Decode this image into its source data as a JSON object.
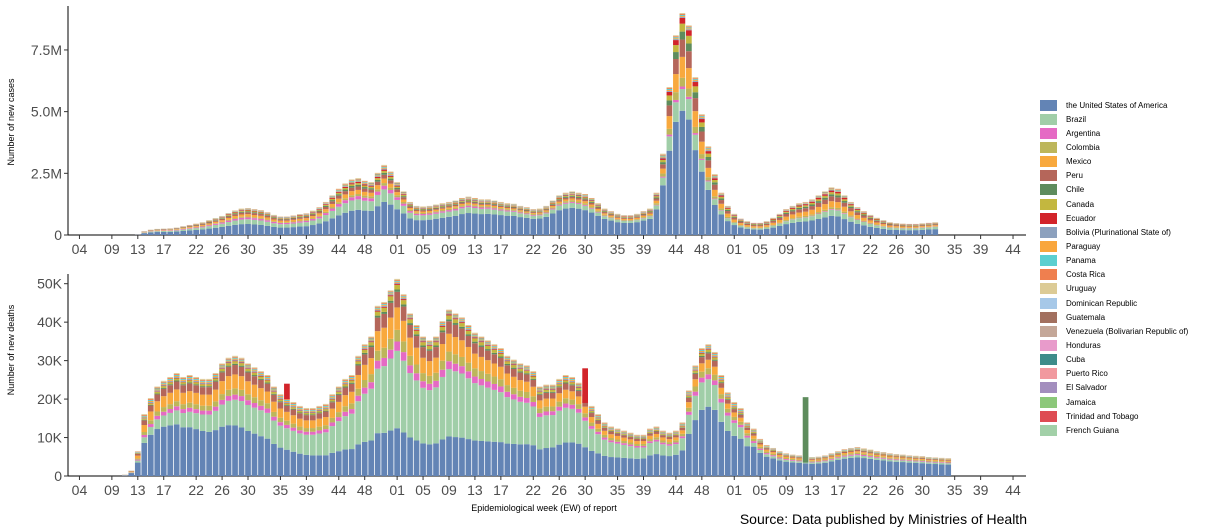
{
  "chart_data": [
    {
      "type": "bar",
      "stacked": true,
      "ylabel": "Number of new cases",
      "xlabel": "",
      "ylim": [
        0,
        9200000
      ],
      "yticks": [
        0,
        2500000,
        5000000,
        7500000
      ],
      "ytick_labels": [
        "0",
        "2.5M",
        "5.0M",
        "7.5M"
      ],
      "xtick_labels": [
        "04",
        "09",
        "13",
        "17",
        "22",
        "26",
        "30",
        "35",
        "39",
        "44",
        "48",
        "01",
        "05",
        "09",
        "13",
        "17",
        "22",
        "26",
        "30",
        "35",
        "39",
        "44",
        "48",
        "01",
        "05",
        "09",
        "13",
        "17",
        "22",
        "26",
        "30",
        "35",
        "39",
        "44"
      ],
      "xtick_weeks": [
        4,
        9,
        13,
        17,
        22,
        26,
        30,
        35,
        39,
        44,
        48,
        53,
        57,
        61,
        65,
        69,
        74,
        78,
        82,
        87,
        91,
        96,
        100,
        105,
        109,
        113,
        117,
        121,
        126,
        130,
        134,
        139,
        143,
        148
      ],
      "weeks_start": 13,
      "totals": [
        30000,
        140000,
        200000,
        230000,
        240000,
        250000,
        280000,
        330000,
        380000,
        430000,
        480000,
        560000,
        640000,
        720000,
        830000,
        930000,
        1000000,
        1020000,
        980000,
        940000,
        860000,
        760000,
        700000,
        700000,
        740000,
        790000,
        820000,
        920000,
        1050000,
        1250000,
        1500000,
        1750000,
        1950000,
        2100000,
        2150000,
        2050000,
        2000000,
        2350000,
        2650000,
        2400000,
        2000000,
        1650000,
        1250000,
        1100000,
        1080000,
        1100000,
        1150000,
        1200000,
        1250000,
        1300000,
        1400000,
        1450000,
        1400000,
        1350000,
        1350000,
        1300000,
        1250000,
        1200000,
        1180000,
        1100000,
        1050000,
        980000,
        1000000,
        1100000,
        1300000,
        1500000,
        1600000,
        1650000,
        1600000,
        1550000,
        1400000,
        1200000,
        1000000,
        900000,
        800000,
        750000,
        750000,
        800000,
        900000,
        1000000,
        1600000,
        3100000,
        5800000,
        7900000,
        8800000,
        8300000,
        6200000,
        4700000,
        3400000,
        2300000,
        1600000,
        1100000,
        800000,
        620000,
        520000,
        460000,
        460000,
        520000,
        650000,
        800000,
        980000,
        1100000,
        1200000,
        1250000,
        1350000,
        1500000,
        1650000,
        1800000,
        1750000,
        1500000,
        1250000,
        1050000,
        900000,
        760000,
        650000,
        560000,
        480000,
        450000,
        430000,
        420000,
        420000,
        440000,
        460000,
        480000
      ],
      "series": [
        {
          "name": "the United States of America",
          "color": "#6384B5"
        },
        {
          "name": "Brazil",
          "color": "#A0CEA8"
        },
        {
          "name": "Argentina",
          "color": "#E56AC4"
        },
        {
          "name": "Colombia",
          "color": "#BDB65B"
        },
        {
          "name": "Mexico",
          "color": "#F8A93E"
        },
        {
          "name": "Peru",
          "color": "#B5665A"
        },
        {
          "name": "Chile",
          "color": "#5E8C5D"
        },
        {
          "name": "Canada",
          "color": "#C3B73F"
        },
        {
          "name": "Ecuador",
          "color": "#D2242A"
        }
      ]
    },
    {
      "type": "bar",
      "stacked": true,
      "ylabel": "Number of new deaths",
      "xlabel": "Epidemiological week (EW) of report",
      "ylim": [
        0,
        52000
      ],
      "yticks": [
        0,
        10000,
        20000,
        30000,
        40000,
        50000
      ],
      "ytick_labels": [
        "0",
        "10K",
        "20K",
        "30K",
        "40K",
        "50K"
      ],
      "xtick_labels": [
        "04",
        "09",
        "13",
        "17",
        "22",
        "26",
        "30",
        "35",
        "39",
        "44",
        "48",
        "01",
        "05",
        "09",
        "13",
        "17",
        "22",
        "26",
        "30",
        "35",
        "39",
        "44",
        "48",
        "01",
        "05",
        "09",
        "13",
        "17",
        "22",
        "26",
        "30",
        "35",
        "39",
        "44"
      ],
      "xtick_weeks": [
        4,
        9,
        13,
        17,
        22,
        26,
        30,
        35,
        39,
        44,
        48,
        53,
        57,
        61,
        65,
        69,
        74,
        78,
        82,
        87,
        91,
        96,
        100,
        105,
        109,
        113,
        117,
        121,
        126,
        130,
        134,
        139,
        143,
        148
      ],
      "weeks_start": 11,
      "totals": [
        300,
        1300,
        6000,
        15000,
        19000,
        22000,
        23500,
        24500,
        25500,
        24500,
        25000,
        24500,
        24000,
        24000,
        25500,
        28000,
        29500,
        30000,
        29500,
        28000,
        27000,
        26000,
        25000,
        22000,
        20000,
        19000,
        18000,
        17000,
        16500,
        16500,
        17000,
        17500,
        20000,
        22000,
        24000,
        25000,
        30000,
        33000,
        35000,
        43000,
        44000,
        47000,
        50000,
        46000,
        41000,
        38000,
        35000,
        34000,
        35000,
        39000,
        42000,
        41000,
        40000,
        38000,
        36000,
        35000,
        34000,
        33000,
        32000,
        30000,
        29000,
        28000,
        27500,
        26000,
        22000,
        22500,
        22500,
        24000,
        25000,
        24500,
        23000,
        20000,
        17000,
        15000,
        13000,
        12000,
        11500,
        11000,
        10500,
        10000,
        10000,
        11500,
        12000,
        11000,
        10500,
        11000,
        13000,
        21000,
        27500,
        32000,
        33000,
        31000,
        25000,
        20500,
        18000,
        16500,
        13000,
        11500,
        9000,
        7500,
        6800,
        6000,
        5500,
        5200,
        5000,
        4800,
        4600,
        4700,
        5000,
        5500,
        6000,
        6500,
        6800,
        7000,
        6700,
        6400,
        6000,
        5800,
        5500,
        5300,
        5200,
        5000,
        4900,
        4800,
        4600,
        4500,
        4400,
        4300
      ],
      "spikes": [
        {
          "week": 36,
          "total": 24000,
          "name": "Ecuador",
          "amount": 4000
        },
        {
          "week": 82,
          "total": 28000,
          "name": "Ecuador",
          "amount": 9000
        },
        {
          "week": 116,
          "total": 20500,
          "name": "Chile",
          "amount": 17000
        }
      ],
      "series": [
        {
          "name": "the United States of America",
          "color": "#6384B5"
        },
        {
          "name": "Brazil",
          "color": "#A0CEA8"
        },
        {
          "name": "Argentina",
          "color": "#E56AC4"
        },
        {
          "name": "Colombia",
          "color": "#BDB65B"
        },
        {
          "name": "Mexico",
          "color": "#F8A93E"
        },
        {
          "name": "Peru",
          "color": "#B5665A"
        },
        {
          "name": "Chile",
          "color": "#5E8C5D"
        },
        {
          "name": "Canada",
          "color": "#C3B73F"
        },
        {
          "name": "Ecuador",
          "color": "#D2242A"
        }
      ]
    }
  ],
  "legend": [
    {
      "label": "the United States of America",
      "color": "#6384B5"
    },
    {
      "label": "Brazil",
      "color": "#A0CEA8"
    },
    {
      "label": "Argentina",
      "color": "#E56AC4"
    },
    {
      "label": "Colombia",
      "color": "#BDB65B"
    },
    {
      "label": "Mexico",
      "color": "#F8A93E"
    },
    {
      "label": "Peru",
      "color": "#B5665A"
    },
    {
      "label": "Chile",
      "color": "#5E8C5D"
    },
    {
      "label": "Canada",
      "color": "#C3B73F"
    },
    {
      "label": "Ecuador",
      "color": "#D2242A"
    },
    {
      "label": "Bolivia (Plurinational State of)",
      "color": "#8CA1BE"
    },
    {
      "label": "Paraguay",
      "color": "#F9A63C"
    },
    {
      "label": "Panama",
      "color": "#5BCFD0"
    },
    {
      "label": "Costa Rica",
      "color": "#EF7F4F"
    },
    {
      "label": "Uruguay",
      "color": "#DCCB96"
    },
    {
      "label": "Dominican Republic",
      "color": "#A6C8E8"
    },
    {
      "label": "Guatemala",
      "color": "#A2705F"
    },
    {
      "label": "Venezuela (Bolivarian Republic of)",
      "color": "#C4A798"
    },
    {
      "label": "Honduras",
      "color": "#E89BCB"
    },
    {
      "label": "Cuba",
      "color": "#3E8C8A"
    },
    {
      "label": "Puerto Rico",
      "color": "#F1999F"
    },
    {
      "label": "El Salvador",
      "color": "#A38EBE"
    },
    {
      "label": "Jamaica",
      "color": "#8CC87A"
    },
    {
      "label": "Trinidad and Tobago",
      "color": "#DE4C53"
    },
    {
      "label": "French Guiana",
      "color": "#A2D0A8"
    }
  ],
  "source": "Source: Data published by Ministries of Health"
}
